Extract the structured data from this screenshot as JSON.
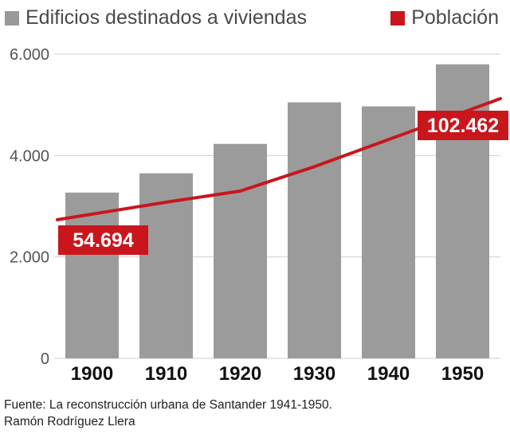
{
  "legend": {
    "bars_label": "Edificios destinados a viviendas",
    "line_label": "Población"
  },
  "colors": {
    "bars": "#9b9b9b",
    "line": "#c9161d",
    "grid": "#cfcfcf",
    "axis_text": "#555555",
    "category_text": "#111111",
    "source_text": "#222222"
  },
  "chart_data": {
    "type": "bar",
    "categories": [
      "1900",
      "1910",
      "1920",
      "1930",
      "1940",
      "1950"
    ],
    "ylim": [
      0,
      6000
    ],
    "yticks": [
      0,
      2000,
      4000,
      6000
    ],
    "ytick_labels": [
      "0",
      "2.000",
      "4.000",
      "6.000"
    ],
    "grid": true,
    "legend_position": "top",
    "series": [
      {
        "name": "Edificios destinados a viviendas",
        "type": "bar",
        "values": [
          3270,
          3650,
          4230,
          5050,
          4970,
          5800
        ]
      },
      {
        "name": "Población",
        "type": "line",
        "values": [
          54694,
          61600,
          66000,
          75600,
          89700,
          102462
        ],
        "ylim_secondary": [
          0,
          120000
        ]
      }
    ],
    "annotations": [
      {
        "category": "1900",
        "text": "54.694"
      },
      {
        "category": "1950",
        "text": "102.462"
      }
    ]
  },
  "source": {
    "line1": "Fuente: La reconstrucción urbana de Santander 1941-1950.",
    "line2": "Ramón Rodríguez Llera"
  }
}
